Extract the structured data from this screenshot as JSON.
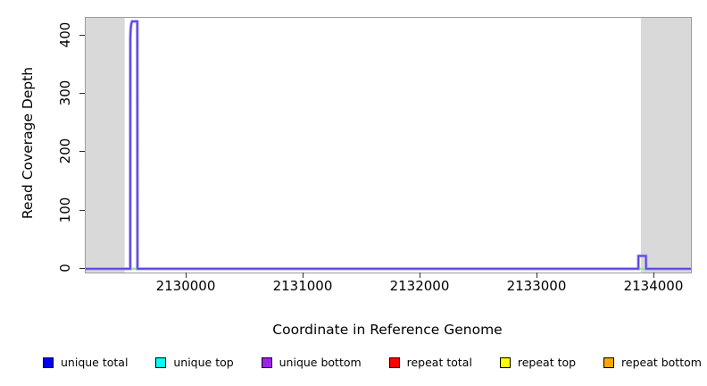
{
  "figure": {
    "y_axis_title": "Read Coverage Depth",
    "x_axis_title": "Coordinate in Reference Genome"
  },
  "chart_data": {
    "type": "line",
    "title": "",
    "xlabel": "Coordinate in Reference Genome",
    "ylabel": "Read Coverage Depth",
    "x_range": [
      2129137,
      2134313
    ],
    "y_view_range": [
      -6.5,
      430
    ],
    "x_ticks": [
      2130000,
      2131000,
      2132000,
      2133000,
      2134000
    ],
    "y_ticks": [
      0,
      100,
      200,
      300,
      400
    ],
    "grid": false,
    "masked_regions": {
      "color": "#d9d9d9",
      "x_spans": [
        [
          2129137,
          2129470
        ],
        [
          2133885,
          2134313
        ]
      ]
    },
    "baseline_highlights": {
      "color": "#90ee90",
      "value": 0,
      "x_spans": [
        [
          2129521,
          2129578
        ],
        [
          2133865,
          2133928
        ]
      ]
    },
    "series": [
      {
        "name": "unique total",
        "color": "#0000ff",
        "points": [
          [
            2129137,
            0
          ],
          [
            2134313,
            0
          ]
        ]
      },
      {
        "name": "unique top",
        "color": "#00ffff",
        "points": [
          [
            2129137,
            0
          ],
          [
            2134313,
            0
          ]
        ]
      },
      {
        "name": "repeat total",
        "color": "#ff0000",
        "points": [
          [
            2129137,
            0
          ],
          [
            2134313,
            0
          ]
        ]
      },
      {
        "name": "repeat top",
        "color": "#ffff00",
        "points": [
          [
            2129137,
            0
          ],
          [
            2134313,
            0
          ]
        ]
      },
      {
        "name": "repeat bottom",
        "color": "#ffa500",
        "points": [
          [
            2129137,
            0
          ],
          [
            2134313,
            0
          ]
        ]
      },
      {
        "name": "unique bottom",
        "color": "#5b42da",
        "halo_color": "#a89df0",
        "points": [
          [
            2129137,
            0
          ],
          [
            2129518,
            0
          ],
          [
            2129519,
            395
          ],
          [
            2129522,
            410
          ],
          [
            2129525,
            417
          ],
          [
            2129529,
            421
          ],
          [
            2129534,
            424
          ],
          [
            2129578,
            424
          ],
          [
            2129580,
            0
          ],
          [
            2133863,
            0
          ],
          [
            2133864,
            22
          ],
          [
            2133928,
            22
          ],
          [
            2133930,
            0
          ],
          [
            2134313,
            0
          ]
        ]
      }
    ],
    "legend": {
      "position": "bottom",
      "entries": [
        {
          "label": "unique total",
          "color": "#0000ff"
        },
        {
          "label": "unique top",
          "color": "#00ffff"
        },
        {
          "label": "unique bottom",
          "color": "#a020f0"
        },
        {
          "label": "repeat total",
          "color": "#ff0000"
        },
        {
          "label": "repeat top",
          "color": "#ffff00"
        },
        {
          "label": "repeat bottom",
          "color": "#ffa500"
        }
      ]
    }
  }
}
